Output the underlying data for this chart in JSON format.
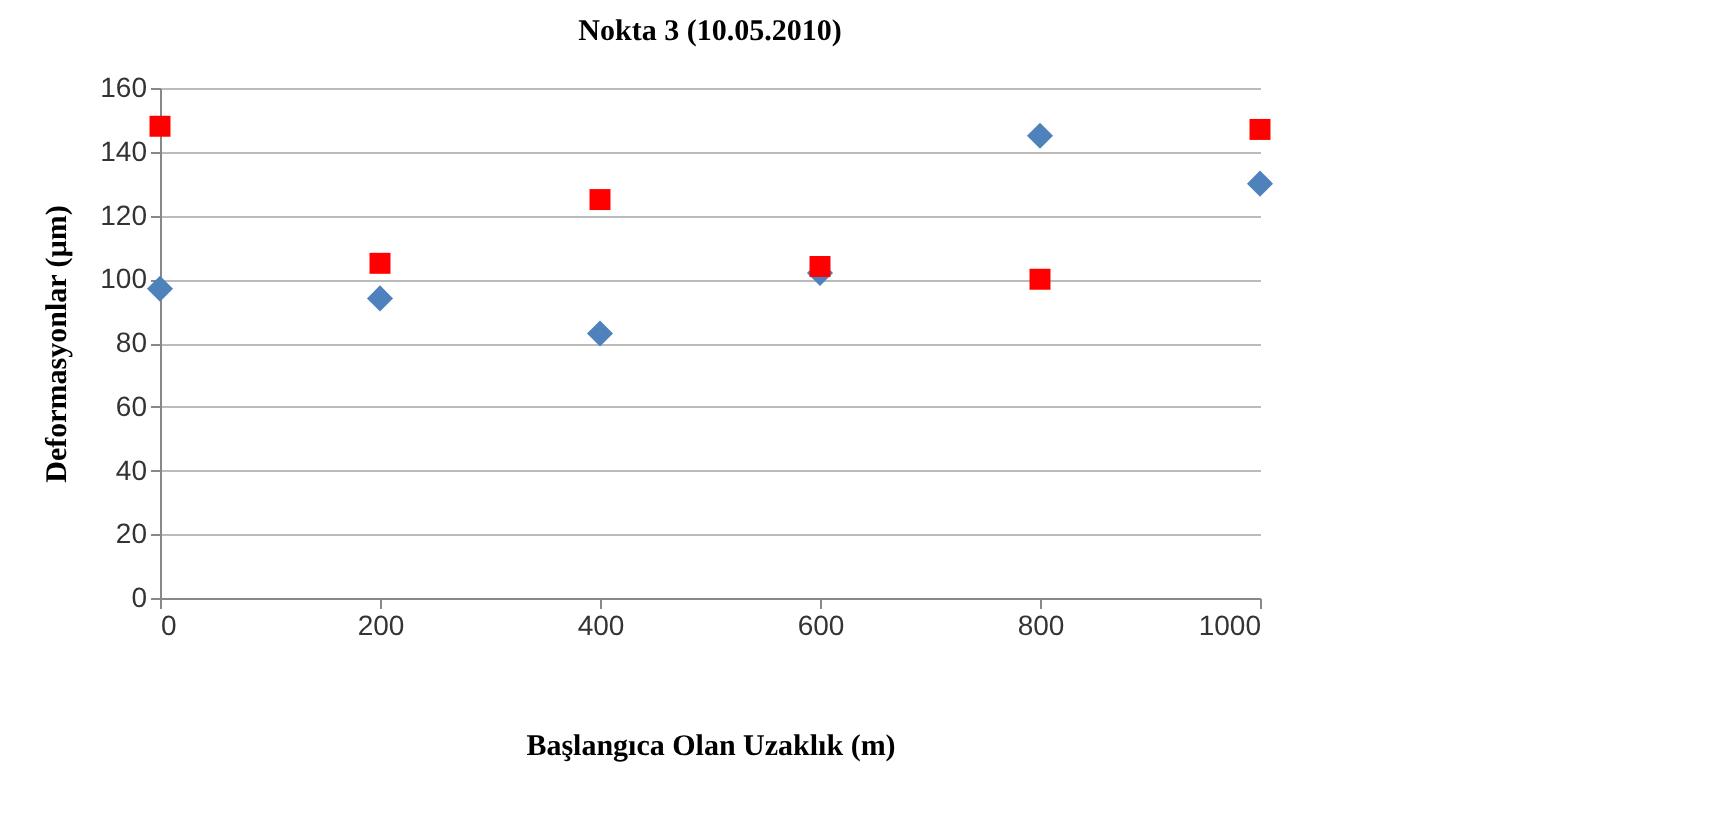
{
  "chart_data": {
    "type": "scatter",
    "title": "Nokta 3 (10.05.2010)",
    "xlabel": "Başlangıca Olan Uzaklık (m)",
    "ylabel": "Deformasyonlar (µm)",
    "x": [
      0,
      200,
      400,
      600,
      800,
      1000
    ],
    "series": [
      {
        "color": "#4f81bd",
        "marker": "diamond",
        "values": [
          97,
          94,
          83,
          102,
          145,
          130
        ]
      },
      {
        "color": "#ff0000",
        "marker": "square",
        "values": [
          148,
          105,
          125,
          104,
          100,
          147
        ]
      }
    ],
    "xlim": [
      0,
      1000
    ],
    "xticks": [
      0,
      200,
      400,
      600,
      800,
      1000
    ],
    "ylim": [
      0,
      160
    ],
    "yticks": [
      0,
      20,
      40,
      60,
      80,
      100,
      120,
      140,
      160
    ],
    "grid": "y",
    "legend": false
  }
}
